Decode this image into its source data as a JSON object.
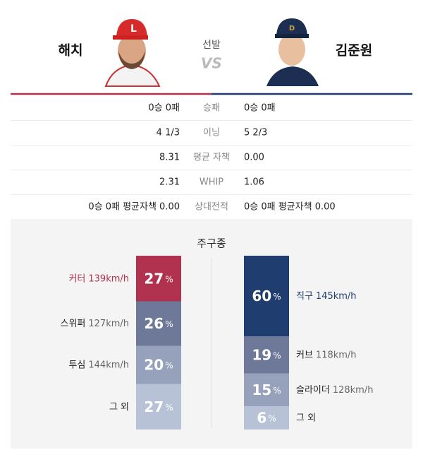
{
  "header": {
    "away": {
      "name": "해치"
    },
    "home": {
      "name": "김준원"
    },
    "label": "선발",
    "vs": "VS"
  },
  "stats": {
    "rows": [
      [
        "0승 0패",
        "승패",
        "0승 0패"
      ],
      [
        "4 1/3",
        "이닝",
        "5 2/3"
      ],
      [
        "8.31",
        "평균 자책",
        "0.00"
      ],
      [
        "2.31",
        "WHIP",
        "1.06"
      ],
      [
        "0승 0패 평균자책 0.00",
        "상대전적",
        "0승 0패 평균자책 0.00"
      ]
    ]
  },
  "pitch_mix": {
    "title": "주구종",
    "unit": "%",
    "left": [
      {
        "name": "커터",
        "speed": "139km/h",
        "value": 27,
        "color": "#b0324e",
        "text_color": "#b0324e"
      },
      {
        "name": "스위퍼",
        "speed": "127km/h",
        "value": 26,
        "color": "#6e7999",
        "text_color": "#222222"
      },
      {
        "name": "투심",
        "speed": "144km/h",
        "value": 20,
        "color": "#96a1bc",
        "text_color": "#222222"
      },
      {
        "name": "그 외",
        "speed": "",
        "value": 27,
        "color": "#b8c2d7",
        "text_color": "#222222"
      }
    ],
    "right": [
      {
        "name": "직구",
        "speed": "145km/h",
        "value": 60,
        "color": "#1f3d6e",
        "text_color": "#1f3d6e"
      },
      {
        "name": "커브",
        "speed": "118km/h",
        "value": 19,
        "color": "#6e7999",
        "text_color": "#222222"
      },
      {
        "name": "슬라이더",
        "speed": "128km/h",
        "value": 15,
        "color": "#96a1bc",
        "text_color": "#222222"
      },
      {
        "name": "그 외",
        "speed": "",
        "value": 6,
        "color": "#b8c2d7",
        "text_color": "#222222"
      }
    ]
  }
}
